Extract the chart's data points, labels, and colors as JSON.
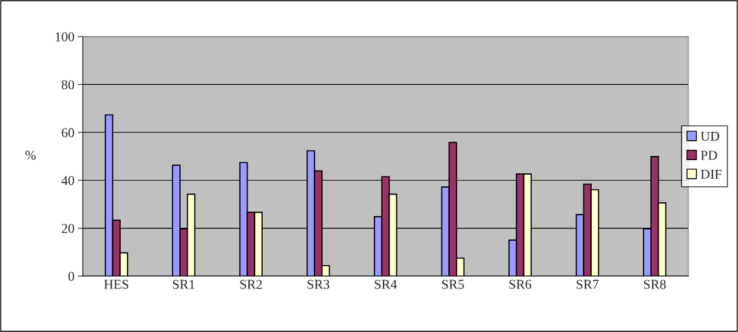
{
  "chart_data": {
    "type": "bar",
    "ylabel": "%",
    "categories": [
      "HES",
      "SR1",
      "SR2",
      "SR3",
      "SR4",
      "SR5",
      "SR6",
      "SR7",
      "SR8"
    ],
    "series": [
      {
        "name": "UD",
        "color": "#9999ff",
        "values": [
          67.3,
          46.3,
          47.4,
          52.3,
          24.8,
          37.2,
          15,
          25.7,
          19.8
        ]
      },
      {
        "name": "PD",
        "color": "#993366",
        "values": [
          23.3,
          19.8,
          26.6,
          43.9,
          41.5,
          55.8,
          42.6,
          38.4,
          49.9
        ]
      },
      {
        "name": "DIF",
        "color": "#ffffcc",
        "values": [
          9.7,
          34.2,
          26.6,
          4.4,
          34.2,
          7.5,
          42.6,
          36.1,
          30.6
        ]
      }
    ],
    "ylim": [
      0,
      100
    ],
    "yticks": [
      0,
      20,
      40,
      60,
      80,
      100
    ],
    "grid": "y",
    "legend": "right"
  }
}
